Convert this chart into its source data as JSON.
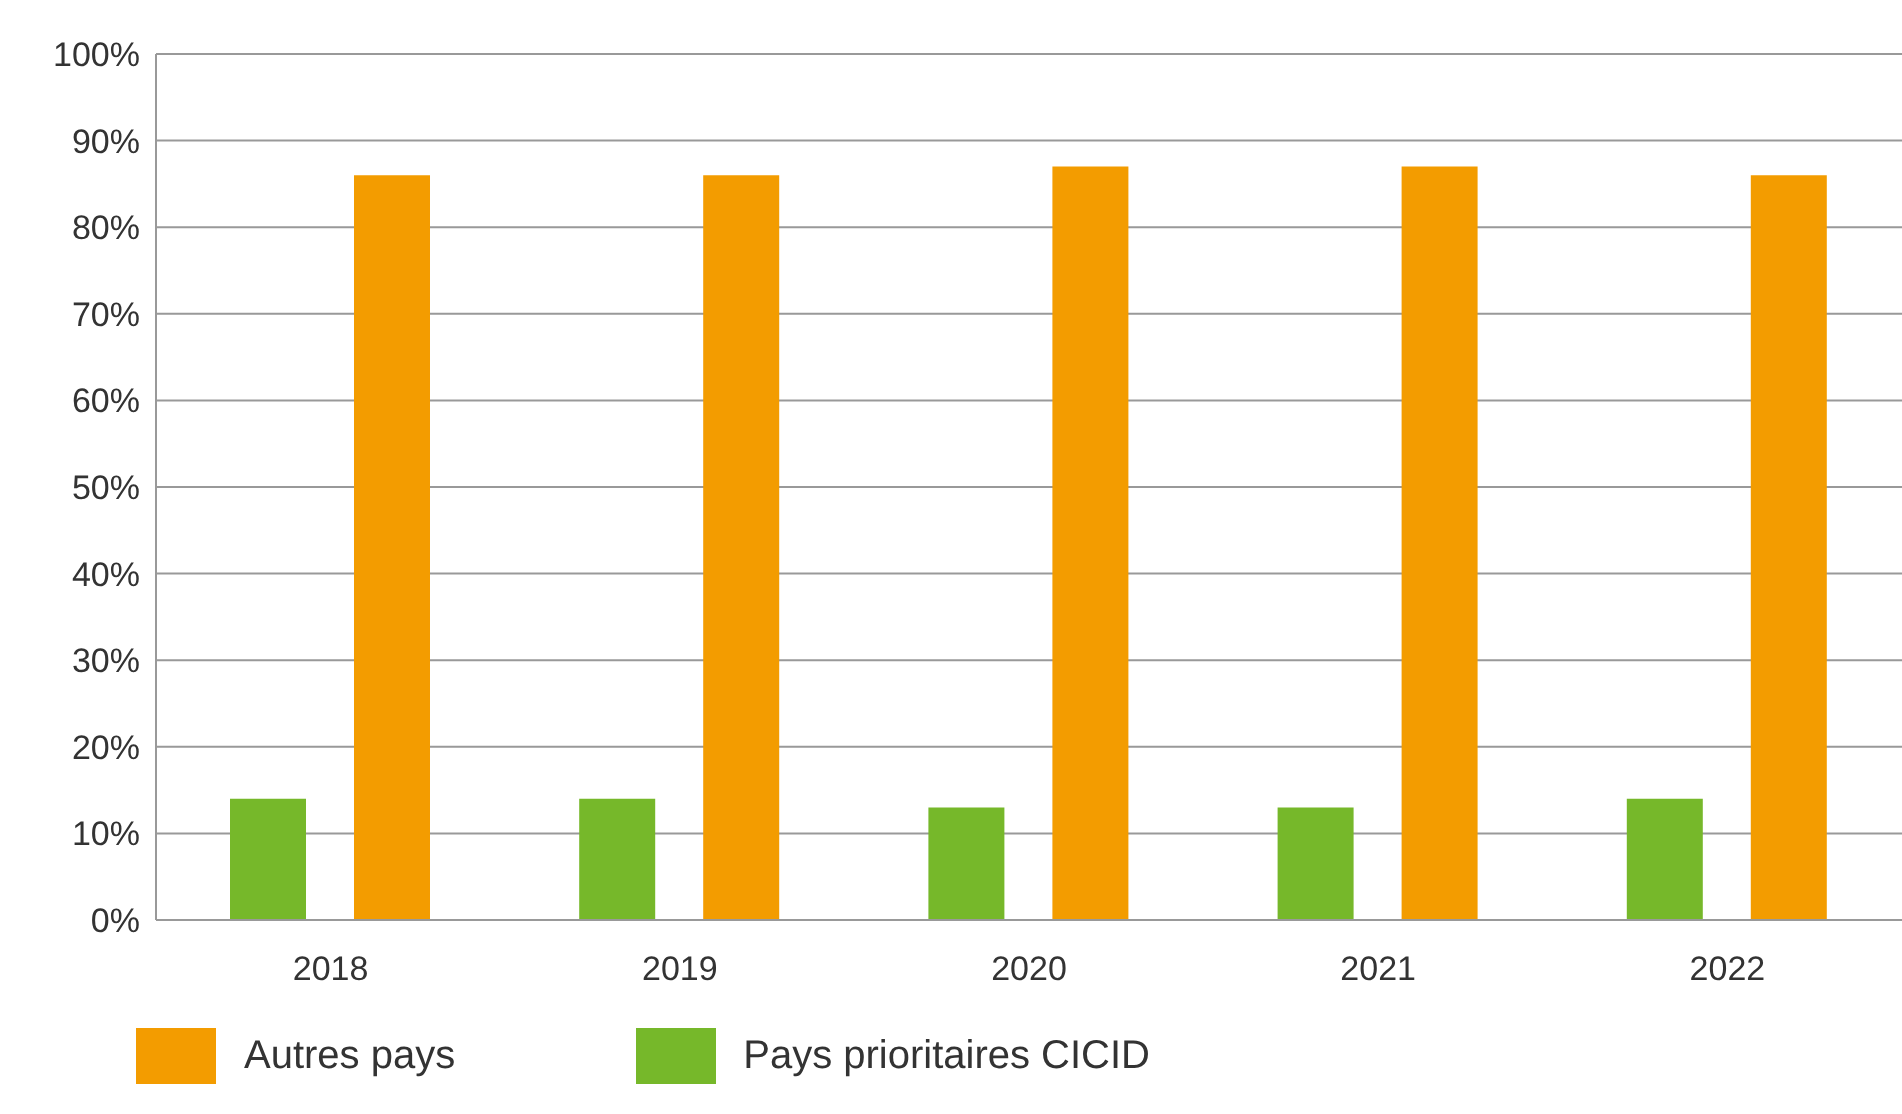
{
  "chart_data": {
    "type": "bar",
    "categories": [
      "2018",
      "2019",
      "2020",
      "2021",
      "2022"
    ],
    "series": [
      {
        "name": "Pays prioritaires CICID",
        "color": "#76b82a",
        "values": [
          14,
          14,
          13,
          13,
          14
        ]
      },
      {
        "name": "Autres pays",
        "color": "#f39c00",
        "values": [
          86,
          86,
          87,
          87,
          86
        ]
      }
    ],
    "ylim": [
      0,
      100
    ],
    "yticks": [
      {
        "value": 0,
        "label": "0%"
      },
      {
        "value": 10,
        "label": "10%"
      },
      {
        "value": 20,
        "label": "20%"
      },
      {
        "value": 30,
        "label": "30%"
      },
      {
        "value": 40,
        "label": "40%"
      },
      {
        "value": 50,
        "label": "50%"
      },
      {
        "value": 60,
        "label": "60%"
      },
      {
        "value": 70,
        "label": "70%"
      },
      {
        "value": 80,
        "label": "80%"
      },
      {
        "value": 90,
        "label": "90%"
      },
      {
        "value": 100,
        "label": "100%"
      }
    ],
    "grid": "y",
    "legend": "bottom"
  }
}
